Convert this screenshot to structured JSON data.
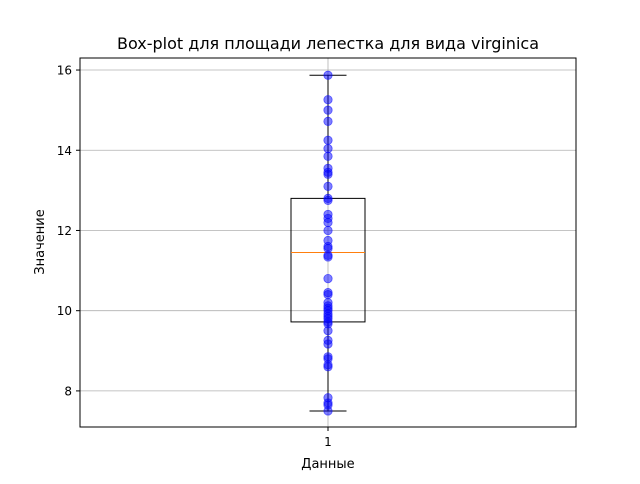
{
  "chart_data": {
    "type": "box",
    "title": "Box-plot для площади лепестка для вида  virginica",
    "xlabel": "Данные",
    "ylabel": "Значение",
    "ylim": [
      7.1,
      16.3
    ],
    "yticks": [
      8,
      10,
      12,
      14,
      16
    ],
    "xticks": [
      "1"
    ],
    "grid": true,
    "box": {
      "category": "1",
      "whisker_low": 7.5,
      "q1": 9.72,
      "median": 11.45,
      "q3": 12.8,
      "whisker_high": 15.87
    },
    "points": [
      7.5,
      7.65,
      7.7,
      7.83,
      8.6,
      8.65,
      8.8,
      8.85,
      9.17,
      9.26,
      9.5,
      9.67,
      9.72,
      9.8,
      9.86,
      9.92,
      10.0,
      10.06,
      10.12,
      10.2,
      10.4,
      10.45,
      10.8,
      11.34,
      11.38,
      11.55,
      11.6,
      11.75,
      12.0,
      12.2,
      12.3,
      12.4,
      12.75,
      12.8,
      13.1,
      13.4,
      13.45,
      13.55,
      13.85,
      14.04,
      14.25,
      14.72,
      15.0,
      15.26,
      15.87
    ],
    "colors": {
      "box": "#000000",
      "median": "#ff7f0e",
      "points": "#0000ff",
      "grid": "#b0b0b0"
    }
  }
}
